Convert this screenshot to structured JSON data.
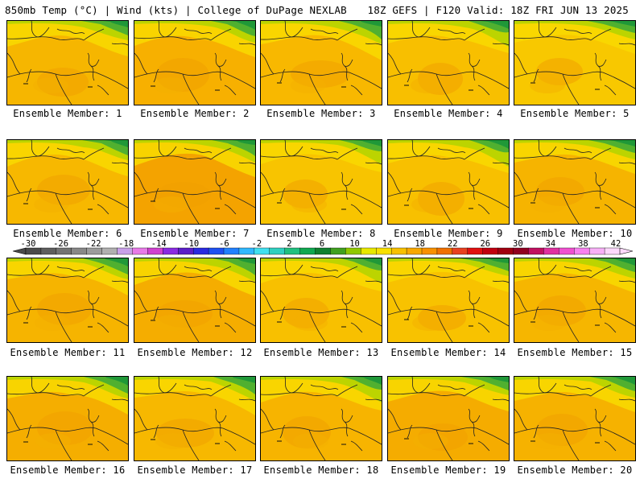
{
  "header": {
    "left": "850mb Temp (°C) | Wind (kts) | College of DuPage NEXLAB",
    "right": "18Z GEFS | F120 Valid: 18Z FRI JUN 13 2025"
  },
  "caption_prefix": "Ensemble Member: ",
  "members": [
    {
      "label": "Ensemble Member: 1",
      "tint": "#f6b600"
    },
    {
      "label": "Ensemble Member: 2",
      "tint": "#f7b000"
    },
    {
      "label": "Ensemble Member: 3",
      "tint": "#f8b800"
    },
    {
      "label": "Ensemble Member: 4",
      "tint": "#f8bf00"
    },
    {
      "label": "Ensemble Member: 5",
      "tint": "#f8c800"
    },
    {
      "label": "Ensemble Member: 6",
      "tint": "#f7b800"
    },
    {
      "label": "Ensemble Member: 7",
      "tint": "#f4a300"
    },
    {
      "label": "Ensemble Member: 8",
      "tint": "#f8c400"
    },
    {
      "label": "Ensemble Member: 9",
      "tint": "#f8c000"
    },
    {
      "label": "Ensemble Member: 10",
      "tint": "#f6b400"
    },
    {
      "label": "Ensemble Member: 11",
      "tint": "#f6b400"
    },
    {
      "label": "Ensemble Member: 12",
      "tint": "#f5ad00"
    },
    {
      "label": "Ensemble Member: 13",
      "tint": "#f8c000"
    },
    {
      "label": "Ensemble Member: 14",
      "tint": "#f8c200"
    },
    {
      "label": "Ensemble Member: 15",
      "tint": "#f6b600"
    },
    {
      "label": "Ensemble Member: 16",
      "tint": "#f5ae00"
    },
    {
      "label": "Ensemble Member: 17",
      "tint": "#f7b800"
    },
    {
      "label": "Ensemble Member: 18",
      "tint": "#f7b400"
    },
    {
      "label": "Ensemble Member: 19",
      "tint": "#f5ac00"
    },
    {
      "label": "Ensemble Member: 20",
      "tint": "#f6b200"
    }
  ],
  "colorbar": {
    "labels": [
      "-30",
      "-26",
      "-22",
      "-18",
      "-14",
      "-10",
      "-6",
      "-2",
      "2",
      "6",
      "10",
      "14",
      "18",
      "22",
      "26",
      "30",
      "34",
      "38",
      "42"
    ],
    "colors": [
      "#4a4a4a",
      "#5e5e5e",
      "#737373",
      "#888888",
      "#9c9c9c",
      "#b0b0b0",
      "#c8a0e8",
      "#e87ae8",
      "#d040d0",
      "#8a2be2",
      "#5a1ec8",
      "#2a2ae0",
      "#1e50f0",
      "#2080ff",
      "#30b8ff",
      "#40e0f0",
      "#30d0c0",
      "#20c080",
      "#10a850",
      "#108030",
      "#40a020",
      "#90c800",
      "#e8e800",
      "#f8e000",
      "#f8c000",
      "#f8a800",
      "#f89000",
      "#f07000",
      "#e84020",
      "#e01010",
      "#c00010",
      "#a00010",
      "#900020",
      "#c01060",
      "#e030a0",
      "#f050d0",
      "#f880f0",
      "#f8b0f8",
      "#fcd8fc"
    ]
  }
}
